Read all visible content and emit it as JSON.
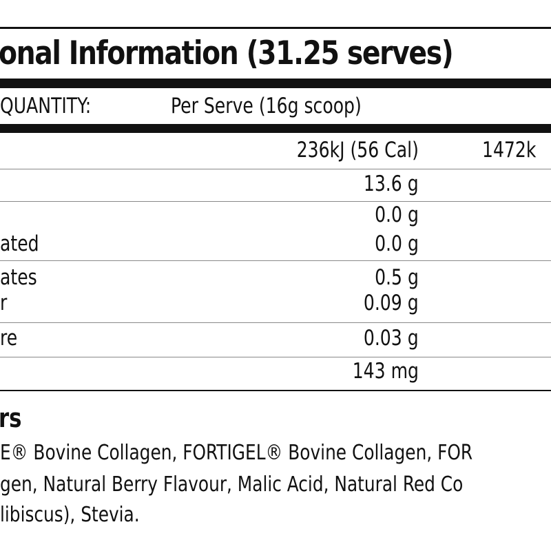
{
  "title": "onal Information (31.25 serves)",
  "header": {
    "quantity_label": "QUANTITY:",
    "per_serve_label": "Per Serve (16g scoop)"
  },
  "rows": [
    {
      "label": "",
      "per_serve": "236kJ (56 Cal)",
      "per_100g": "1472k"
    },
    {
      "label": "",
      "per_serve": "13.6 g"
    },
    {
      "label": "",
      "per_serve": "0.0 g"
    },
    {
      "label": "ated",
      "per_serve": "0.0 g"
    },
    {
      "label": "ates",
      "per_serve": "0.5 g"
    },
    {
      "label": "r",
      "per_serve": "0.09 g"
    },
    {
      "label": "re",
      "per_serve": "0.03 g"
    },
    {
      "label": "",
      "per_serve": "143 mg"
    }
  ],
  "ingredients": {
    "heading": "rs",
    "lines": [
      "E® Bovine Collagen, FORTIGEL® Bovine Collagen, FOR",
      "gen, Natural Berry Flavour, Malic Acid, Natural Red Co",
      "libiscus), Stevia."
    ]
  }
}
